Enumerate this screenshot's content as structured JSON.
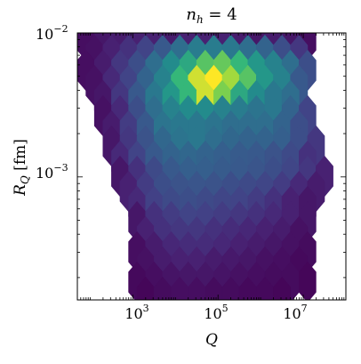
{
  "chart_data": {
    "type": "heatmap",
    "subtype": "hexbin",
    "title": "n_h = 4",
    "title_parts": {
      "base": "n",
      "sub": "h",
      "rest": " = 4"
    },
    "xlabel": "Q",
    "ylabel": "R_Q [fm]",
    "ylabel_parts": {
      "base": "R",
      "sub": "Q",
      "rest": " [fm]"
    },
    "x_scale": "log",
    "y_scale": "log",
    "xlim": [
      50,
      100000000
    ],
    "ylim": [
      0.00014,
      0.01
    ],
    "x_ticks": [
      {
        "value": 1000,
        "base": "10",
        "exp": "3"
      },
      {
        "value": 100000,
        "base": "10",
        "exp": "5"
      },
      {
        "value": 10000000,
        "base": "10",
        "exp": "7"
      }
    ],
    "y_ticks": [
      {
        "value": 0.01,
        "base": "10",
        "exp": "−2"
      },
      {
        "value": 0.001,
        "base": "10",
        "exp": "−3"
      }
    ],
    "colormap": "viridis",
    "grid": false,
    "legend": false,
    "hex_rows": [
      {
        "log_rq": -2.05,
        "start_log_q": 1.9,
        "levels": [
          0.05,
          0.08,
          0.1,
          0.12,
          0.12,
          0.1,
          0.12,
          0.12,
          0.12,
          0.1,
          0.08,
          0.1,
          0.08,
          0.05
        ]
      },
      {
        "log_rq": -2.155,
        "start_log_q": 2.1,
        "levels": [
          0.06,
          0.12,
          0.18,
          0.25,
          0.35,
          0.45,
          0.52,
          0.52,
          0.5,
          0.45,
          0.4,
          0.3,
          0.2
        ]
      },
      {
        "log_rq": -2.26,
        "start_log_q": 1.9,
        "levels": [
          0.05,
          0.1,
          0.2,
          0.3,
          0.45,
          0.6,
          0.7,
          0.8,
          0.82,
          0.75,
          0.65,
          0.55,
          0.45,
          0.3
        ]
      },
      {
        "log_rq": -2.365,
        "start_log_q": 2.1,
        "levels": [
          0.06,
          0.15,
          0.25,
          0.4,
          0.55,
          0.75,
          0.95,
          1.0,
          0.9,
          0.8,
          0.65,
          0.55,
          0.35
        ]
      },
      {
        "log_rq": -2.47,
        "start_log_q": 2.3,
        "levels": [
          0.08,
          0.2,
          0.35,
          0.5,
          0.65,
          0.75,
          0.95,
          0.85,
          0.7,
          0.6,
          0.5,
          0.45
        ]
      },
      {
        "log_rq": -2.575,
        "start_log_q": 2.3,
        "levels": [
          0.06,
          0.15,
          0.3,
          0.45,
          0.55,
          0.6,
          0.6,
          0.55,
          0.52,
          0.48,
          0.5,
          0.4,
          0.25
        ]
      },
      {
        "log_rq": -2.68,
        "start_log_q": 2.5,
        "levels": [
          0.1,
          0.22,
          0.35,
          0.48,
          0.5,
          0.5,
          0.48,
          0.45,
          0.45,
          0.45,
          0.4,
          0.3
        ]
      },
      {
        "log_rq": -2.785,
        "start_log_q": 2.5,
        "levels": [
          0.08,
          0.2,
          0.32,
          0.42,
          0.48,
          0.5,
          0.45,
          0.42,
          0.4,
          0.4,
          0.38,
          0.3,
          0.2
        ]
      },
      {
        "log_rq": -2.89,
        "start_log_q": 2.7,
        "levels": [
          0.15,
          0.25,
          0.35,
          0.4,
          0.42,
          0.4,
          0.38,
          0.36,
          0.35,
          0.32,
          0.28,
          0.18
        ]
      },
      {
        "log_rq": -2.995,
        "start_log_q": 2.7,
        "levels": [
          0.08,
          0.18,
          0.28,
          0.35,
          0.38,
          0.38,
          0.36,
          0.35,
          0.33,
          0.3,
          0.26,
          0.2,
          0.12
        ]
      },
      {
        "log_rq": -3.1,
        "start_log_q": 2.9,
        "levels": [
          0.12,
          0.22,
          0.3,
          0.32,
          0.33,
          0.32,
          0.3,
          0.28,
          0.26,
          0.22,
          0.15,
          0.1
        ]
      },
      {
        "log_rq": -3.205,
        "start_log_q": 3.1,
        "levels": [
          0.15,
          0.24,
          0.28,
          0.3,
          0.28,
          0.26,
          0.25,
          0.22,
          0.18,
          0.12,
          0.08
        ]
      },
      {
        "log_rq": -3.31,
        "start_log_q": 3.1,
        "levels": [
          0.08,
          0.18,
          0.22,
          0.25,
          0.24,
          0.22,
          0.2,
          0.18,
          0.15,
          0.12,
          0.08
        ]
      },
      {
        "log_rq": -3.415,
        "start_log_q": 3.3,
        "levels": [
          0.12,
          0.18,
          0.2,
          0.2,
          0.18,
          0.16,
          0.14,
          0.12,
          0.1,
          0.06
        ]
      },
      {
        "log_rq": -3.52,
        "start_log_q": 3.1,
        "levels": [
          0.05,
          0.1,
          0.14,
          0.16,
          0.16,
          0.14,
          0.12,
          0.1,
          0.08,
          0.06,
          0.04
        ]
      },
      {
        "log_rq": -3.625,
        "start_log_q": 3.3,
        "levels": [
          0.06,
          0.1,
          0.12,
          0.12,
          0.1,
          0.09,
          0.08,
          0.06,
          0.05,
          0.03
        ]
      },
      {
        "log_rq": -3.73,
        "start_log_q": 3.1,
        "levels": [
          0.03,
          0.05,
          0.07,
          0.08,
          0.08,
          0.07,
          0.06,
          0.05,
          0.04,
          0.04,
          0.02
        ]
      },
      {
        "log_rq": -3.835,
        "start_log_q": 3.3,
        "levels": [
          0.02,
          0.04,
          0.05,
          0.05,
          0.04,
          0.04,
          0.03,
          0.03,
          0.02
        ]
      }
    ]
  }
}
